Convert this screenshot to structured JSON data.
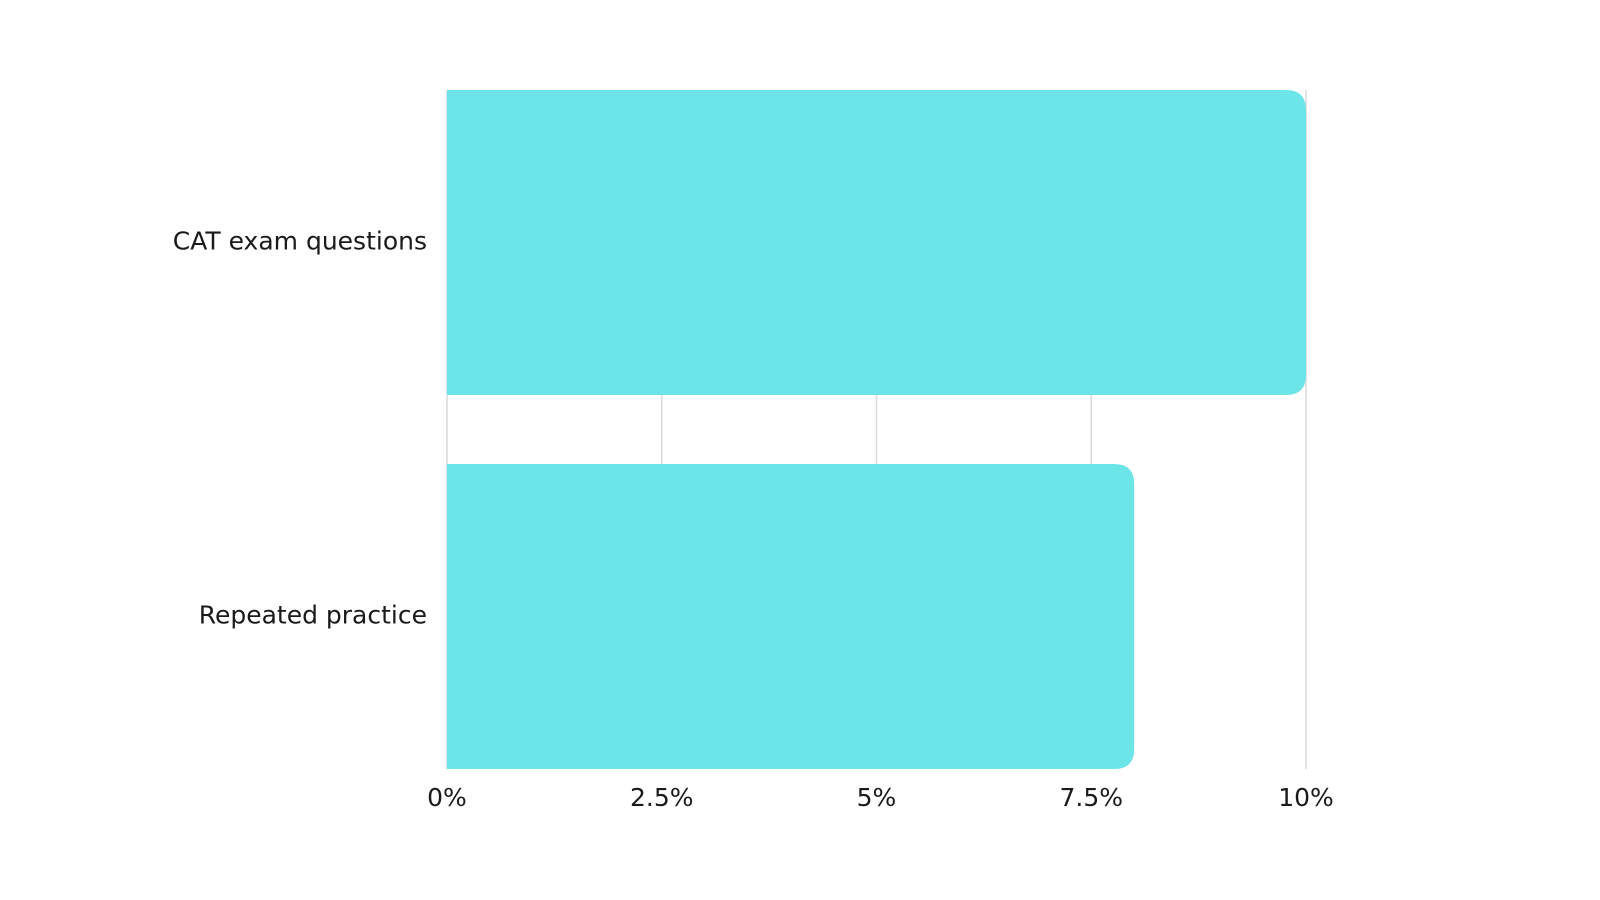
{
  "chart_data": {
    "type": "hbar",
    "categories": [
      "CAT exam questions",
      "Repeated practice"
    ],
    "values": [
      10,
      8
    ],
    "color": "#6ce5e8",
    "xlim": [
      0,
      10
    ],
    "xticks": [
      {
        "value": 0,
        "label": "0%"
      },
      {
        "value": 2.5,
        "label": "2.5%"
      },
      {
        "value": 5,
        "label": "5%"
      },
      {
        "value": 7.5,
        "label": "7.5%"
      },
      {
        "value": 10,
        "label": "10%"
      }
    ],
    "grid": true
  }
}
